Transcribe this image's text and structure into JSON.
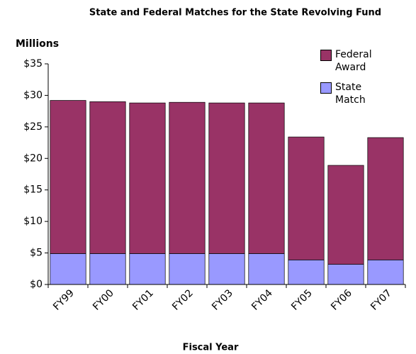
{
  "chart_data": {
    "type": "stacked_bar",
    "title": "State and Federal Matches for the State Revolving Fund",
    "y_axis_label": "Millions",
    "x_axis_label": "Fiscal Year",
    "categories": [
      "FY99",
      "FY00",
      "FY01",
      "FY02",
      "FY03",
      "FY04",
      "FY05",
      "FY06",
      "FY07"
    ],
    "series": [
      {
        "name": "State Match",
        "color": "#9999ff",
        "values": [
          4.9,
          4.9,
          4.9,
          4.9,
          4.9,
          4.9,
          3.9,
          3.2,
          3.9
        ]
      },
      {
        "name": "Federal Award",
        "color": "#993366",
        "values": [
          24.3,
          24.1,
          23.9,
          24.0,
          23.9,
          23.9,
          19.5,
          15.7,
          19.4
        ]
      }
    ],
    "ylim": [
      0,
      35
    ],
    "yticks": [
      {
        "value": 0,
        "label": "$0"
      },
      {
        "value": 5,
        "label": "$5"
      },
      {
        "value": 10,
        "label": "$10"
      },
      {
        "value": 15,
        "label": "$15"
      },
      {
        "value": 20,
        "label": "$20"
      },
      {
        "value": 25,
        "label": "$25"
      },
      {
        "value": 30,
        "label": "$30"
      },
      {
        "value": 35,
        "label": "$35"
      }
    ],
    "grid": false
  }
}
